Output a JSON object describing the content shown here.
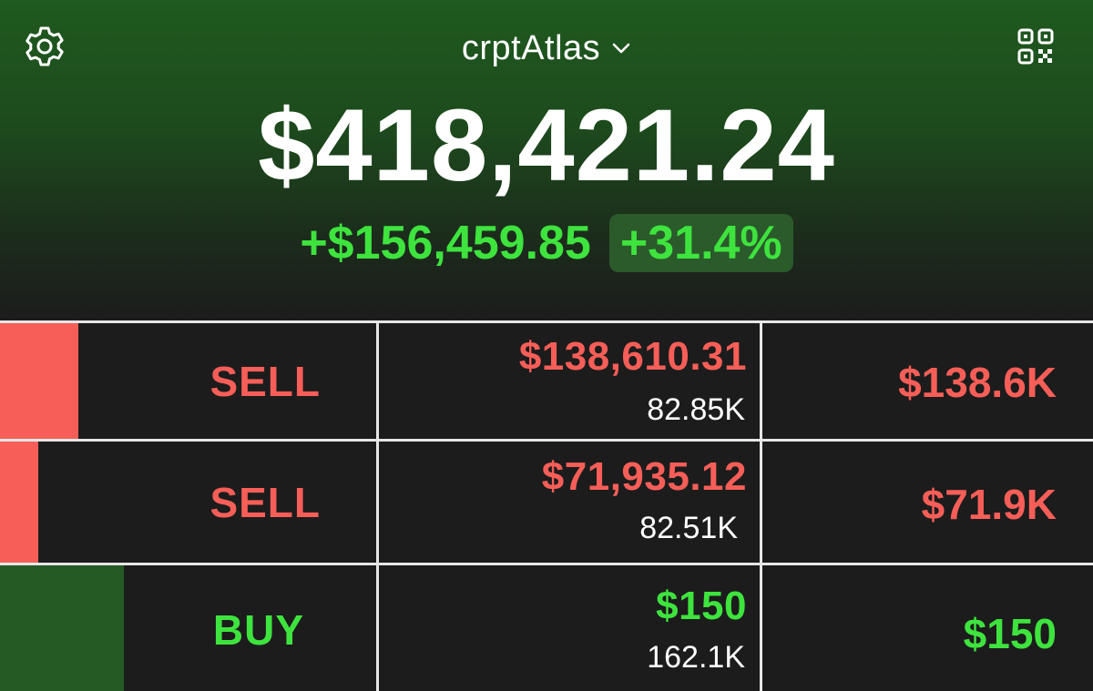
{
  "header": {
    "account_name": "crptAtlas",
    "balance": "$418,421.24",
    "pl_amount": "+$156,459.85",
    "pl_percent": "+31.4%"
  },
  "colors": {
    "sell": "#f85e58",
    "buy": "#3ee33e",
    "sell_bar": "#f85e58",
    "buy_bar": "#255a25"
  },
  "icons": {
    "settings": "gear-icon",
    "qr": "qr-code-icon",
    "dropdown": "chevron-down-icon"
  },
  "orders": [
    {
      "side": "SELL",
      "price": "$138,610.31",
      "quantity": "82.85K",
      "total": "$138.6K",
      "bar_fraction": 0.072
    },
    {
      "side": "SELL",
      "price": "$71,935.12",
      "quantity": "82.51K",
      "total": "$71.9K",
      "bar_fraction": 0.035
    },
    {
      "side": "BUY",
      "price": "$150",
      "quantity": "162.1K",
      "total": "$150",
      "bar_fraction": 0.113
    }
  ]
}
